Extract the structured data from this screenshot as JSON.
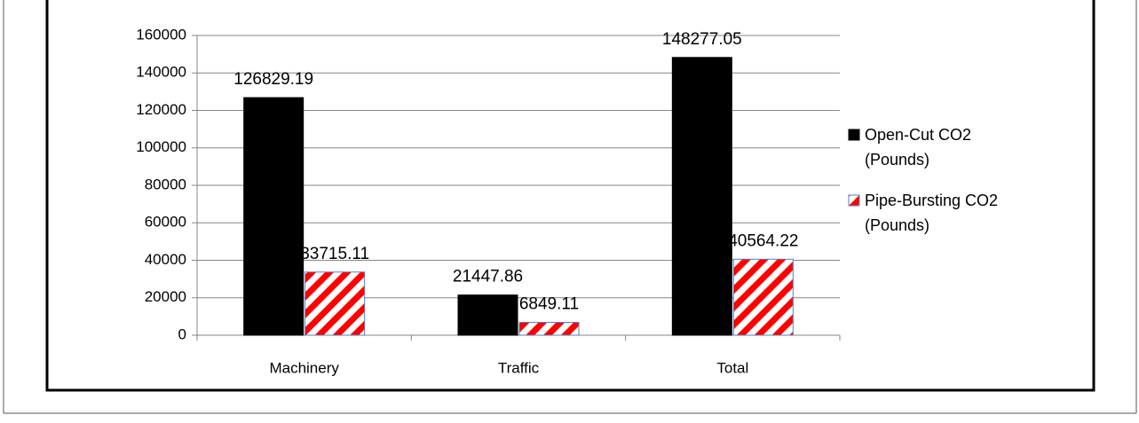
{
  "chart_data": {
    "type": "bar",
    "categories": [
      "Machinery",
      "Traffic",
      "Total"
    ],
    "series": [
      {
        "name": "Open-Cut CO2 (Pounds)",
        "color": "#000000",
        "values": [
          126829.19,
          21447.86,
          148277.05
        ]
      },
      {
        "name": "Pipe-Bursting CO2 (Pounds)",
        "color": "#ff0000",
        "hatch": true,
        "values": [
          33715.11,
          6849.11,
          40564.22
        ]
      }
    ],
    "ylim": [
      0,
      160000
    ],
    "yticks": [
      0,
      20000,
      40000,
      60000,
      80000,
      100000,
      120000,
      140000,
      160000
    ],
    "grid": true,
    "legend": "right"
  }
}
